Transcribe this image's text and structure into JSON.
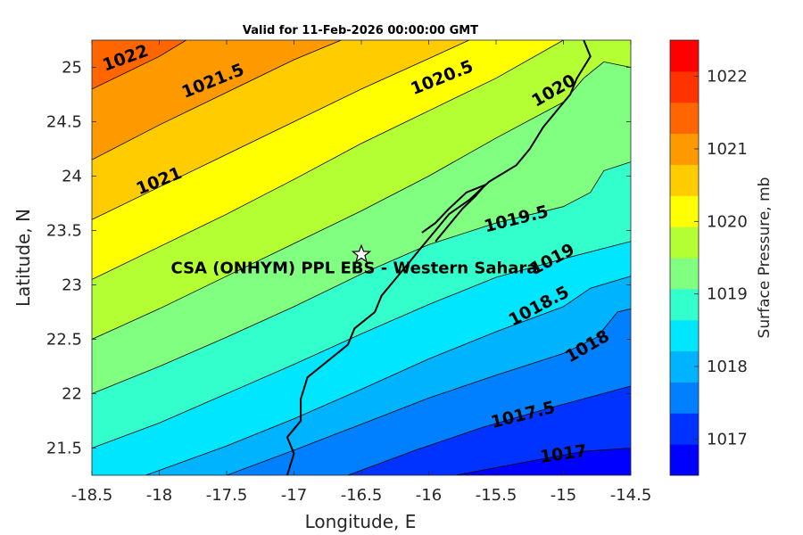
{
  "chart_data": {
    "type": "contour",
    "title": "Valid for 11-Feb-2026 00:00:00 GMT",
    "xlabel": "Longitude, E",
    "ylabel": "Latitude, N",
    "xlim": [
      -18.5,
      -14.5
    ],
    "ylim": [
      21.25,
      25.25
    ],
    "xticks": [
      "-18.5",
      "-18",
      "-17.5",
      "-17",
      "-16.5",
      "-16",
      "-15.5",
      "-15",
      "-14.5"
    ],
    "yticks": [
      "21.5",
      "22",
      "22.5",
      "23",
      "23.5",
      "24",
      "24.5",
      "25"
    ],
    "colorbar": {
      "label": "Surface Pressure, mb",
      "range": [
        1016.5,
        1022.5
      ],
      "step": 0.5,
      "ticks": [
        "1017",
        "1018",
        "1019",
        "1020",
        "1021",
        "1022"
      ],
      "colors": [
        "#0000ff",
        "#0033ff",
        "#0080ff",
        "#00b3ff",
        "#00e6ff",
        "#33ffcc",
        "#80ff80",
        "#b3ff33",
        "#ffff00",
        "#ffcc00",
        "#ff9900",
        "#ff6600",
        "#ff3300",
        "#ff0000"
      ]
    },
    "isobars": [
      {
        "level": 1017,
        "label": "1017",
        "points": [
          [
            -15.8,
            21.25
          ],
          [
            -15.2,
            21.39
          ],
          [
            -14.85,
            21.47
          ],
          [
            -14.5,
            21.5
          ]
        ],
        "label_at": [
          -15.0,
          21.44
        ],
        "angle": -8
      },
      {
        "level": 1017.5,
        "label": "1017.5",
        "points": [
          [
            -16.6,
            21.25
          ],
          [
            -16.1,
            21.48
          ],
          [
            -15.6,
            21.69
          ],
          [
            -15.1,
            21.87
          ],
          [
            -14.5,
            22.07
          ]
        ],
        "label_at": [
          -15.3,
          21.8
        ],
        "angle": -14
      },
      {
        "level": 1018,
        "label": "1018",
        "points": [
          [
            -17.5,
            21.25
          ],
          [
            -17.0,
            21.48
          ],
          [
            -16.5,
            21.72
          ],
          [
            -16.0,
            21.96
          ],
          [
            -15.5,
            22.17
          ],
          [
            -15.0,
            22.37
          ],
          [
            -14.75,
            22.52
          ],
          [
            -14.6,
            22.75
          ],
          [
            -14.5,
            22.78
          ]
        ],
        "label_at": [
          -14.82,
          22.43
        ],
        "angle": -30
      },
      {
        "level": 1018.5,
        "label": "1018.5",
        "points": [
          [
            -18.1,
            21.25
          ],
          [
            -17.5,
            21.52
          ],
          [
            -17.0,
            21.77
          ],
          [
            -16.5,
            22.04
          ],
          [
            -16.0,
            22.32
          ],
          [
            -15.5,
            22.57
          ],
          [
            -15.0,
            22.8
          ],
          [
            -14.8,
            22.97
          ],
          [
            -14.5,
            23.08
          ]
        ],
        "label_at": [
          -15.18,
          22.8
        ],
        "angle": -28
      },
      {
        "level": 1019,
        "label": "1019",
        "points": [
          [
            -18.5,
            21.5
          ],
          [
            -18.0,
            21.73
          ],
          [
            -17.5,
            22.0
          ],
          [
            -17.0,
            22.27
          ],
          [
            -16.5,
            22.55
          ],
          [
            -16.0,
            22.82
          ],
          [
            -15.5,
            23.07
          ],
          [
            -15.0,
            23.24
          ],
          [
            -14.5,
            23.4
          ]
        ],
        "label_at": [
          -15.08,
          23.23
        ],
        "angle": -28
      },
      {
        "level": 1019.5,
        "label": "1019.5",
        "points": [
          [
            -18.5,
            22.0
          ],
          [
            -18.0,
            22.25
          ],
          [
            -17.5,
            22.52
          ],
          [
            -17.0,
            22.8
          ],
          [
            -16.5,
            23.1
          ],
          [
            -16.0,
            23.37
          ],
          [
            -15.5,
            23.57
          ],
          [
            -15.0,
            23.72
          ],
          [
            -14.8,
            23.85
          ],
          [
            -14.7,
            24.05
          ],
          [
            -14.5,
            24.13
          ]
        ],
        "label_at": [
          -15.35,
          23.6
        ],
        "angle": -14
      },
      {
        "level": 1020,
        "label": "1020",
        "points": [
          [
            -18.5,
            22.5
          ],
          [
            -18.0,
            22.78
          ],
          [
            -17.5,
            23.08
          ],
          [
            -17.0,
            23.38
          ],
          [
            -16.5,
            23.68
          ],
          [
            -16.0,
            24.0
          ],
          [
            -15.5,
            24.35
          ],
          [
            -15.0,
            24.68
          ],
          [
            -14.85,
            24.9
          ],
          [
            -14.7,
            25.05
          ],
          [
            -14.5,
            25.0
          ]
        ],
        "label_at": [
          -15.07,
          24.78
        ],
        "angle": -30
      },
      {
        "level": 1020.5,
        "label": "1020.5",
        "points": [
          [
            -18.5,
            23.05
          ],
          [
            -18.0,
            23.35
          ],
          [
            -17.5,
            23.65
          ],
          [
            -17.0,
            23.97
          ],
          [
            -16.5,
            24.3
          ],
          [
            -16.0,
            24.6
          ],
          [
            -15.5,
            24.9
          ],
          [
            -15.0,
            25.25
          ]
        ],
        "label_at": [
          -15.9,
          24.9
        ],
        "angle": -22
      },
      {
        "level": 1021,
        "label": "1021",
        "points": [
          [
            -18.5,
            23.6
          ],
          [
            -18.0,
            23.9
          ],
          [
            -17.5,
            24.2
          ],
          [
            -17.0,
            24.5
          ],
          [
            -16.5,
            24.8
          ],
          [
            -16.0,
            25.08
          ],
          [
            -15.7,
            25.25
          ]
        ],
        "label_at": [
          -18.0,
          23.95
        ],
        "angle": -22
      },
      {
        "level": 1021.5,
        "label": "1021.5",
        "points": [
          [
            -18.5,
            24.15
          ],
          [
            -18.0,
            24.47
          ],
          [
            -17.5,
            24.77
          ],
          [
            -17.0,
            25.07
          ],
          [
            -16.65,
            25.25
          ]
        ],
        "label_at": [
          -17.6,
          24.87
        ],
        "angle": -22
      },
      {
        "level": 1022,
        "label": "1022",
        "points": [
          [
            -18.5,
            24.8
          ],
          [
            -18.0,
            25.1
          ],
          [
            -17.8,
            25.25
          ]
        ],
        "label_at": [
          -18.25,
          25.08
        ],
        "angle": -20
      }
    ],
    "coastline": [
      [
        -17.05,
        21.25
      ],
      [
        -17.0,
        21.45
      ],
      [
        -17.05,
        21.6
      ],
      [
        -16.95,
        21.75
      ],
      [
        -16.95,
        21.95
      ],
      [
        -16.9,
        22.15
      ],
      [
        -16.75,
        22.3
      ],
      [
        -16.6,
        22.45
      ],
      [
        -16.55,
        22.6
      ],
      [
        -16.4,
        22.75
      ],
      [
        -16.35,
        22.9
      ],
      [
        -16.25,
        23.05
      ],
      [
        -16.15,
        23.2
      ],
      [
        -16.05,
        23.35
      ],
      [
        -15.95,
        23.5
      ],
      [
        -15.85,
        23.65
      ],
      [
        -15.7,
        23.78
      ],
      [
        -15.55,
        23.95
      ],
      [
        -15.35,
        24.1
      ],
      [
        -15.25,
        24.25
      ],
      [
        -15.15,
        24.45
      ],
      [
        -15.05,
        24.6
      ],
      [
        -14.95,
        24.75
      ],
      [
        -14.9,
        24.9
      ],
      [
        -14.85,
        25.0
      ],
      [
        -14.8,
        25.1
      ],
      [
        -14.85,
        25.25
      ]
    ],
    "peninsula": [
      [
        -15.95,
        23.4
      ],
      [
        -15.85,
        23.55
      ],
      [
        -15.75,
        23.7
      ],
      [
        -15.65,
        23.82
      ],
      [
        -15.58,
        23.92
      ],
      [
        -15.72,
        23.85
      ],
      [
        -15.85,
        23.7
      ],
      [
        -15.95,
        23.57
      ],
      [
        -16.05,
        23.48
      ]
    ],
    "site": {
      "lon": -16.5,
      "lat": 23.28,
      "label": "CSA (ONHYM) PPL EBS  - Western Sahara"
    }
  }
}
